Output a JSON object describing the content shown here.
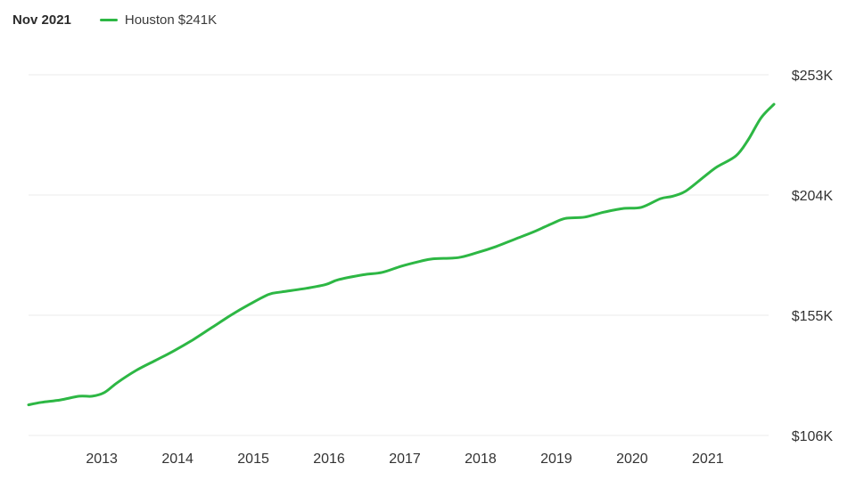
{
  "header": {
    "date_label": "Nov 2021",
    "legend": {
      "name": "Houston",
      "value": "$241K",
      "color": "#2db744"
    }
  },
  "chart_data": {
    "type": "line",
    "title": "",
    "xlabel": "",
    "ylabel": "",
    "x_tick_labels": [
      "2013",
      "2014",
      "2015",
      "2016",
      "2017",
      "2018",
      "2019",
      "2020",
      "2021"
    ],
    "x_ticks": [
      2013,
      2014,
      2015,
      2016,
      2017,
      2018,
      2019,
      2020,
      2021
    ],
    "y_tick_labels": [
      "$253K",
      "$204K",
      "$155K",
      "$106K"
    ],
    "y_ticks": [
      253,
      204,
      155,
      106
    ],
    "xlim": [
      2012.08,
      2021.92
    ],
    "ylim": [
      106,
      253
    ],
    "grid": "horizontal",
    "series": [
      {
        "name": "Houston",
        "color": "#2db744",
        "x": [
          2012.08,
          2012.25,
          2012.5,
          2012.75,
          2012.92,
          2013.08,
          2013.25,
          2013.5,
          2013.75,
          2014.0,
          2014.25,
          2014.5,
          2014.75,
          2015.0,
          2015.25,
          2015.42,
          2015.75,
          2016.0,
          2016.17,
          2016.5,
          2016.75,
          2017.0,
          2017.25,
          2017.42,
          2017.75,
          2018.0,
          2018.25,
          2018.5,
          2018.75,
          2019.0,
          2019.17,
          2019.42,
          2019.67,
          2019.92,
          2020.17,
          2020.42,
          2020.58,
          2020.75,
          2021.0,
          2021.17,
          2021.42,
          2021.58,
          2021.75,
          2021.92
        ],
        "y": [
          118.5,
          119.5,
          120.5,
          122.0,
          122.0,
          123.5,
          127.5,
          132.5,
          136.5,
          140.5,
          145.0,
          150.0,
          155.0,
          159.5,
          163.5,
          164.5,
          166.0,
          167.5,
          169.5,
          171.5,
          172.5,
          175.0,
          177.0,
          178.0,
          178.5,
          180.5,
          183.0,
          186.0,
          189.0,
          192.5,
          194.5,
          195.0,
          197.0,
          198.5,
          199.0,
          202.5,
          203.5,
          205.5,
          211.5,
          215.5,
          220.0,
          226.5,
          235.5,
          241.0
        ]
      }
    ]
  }
}
